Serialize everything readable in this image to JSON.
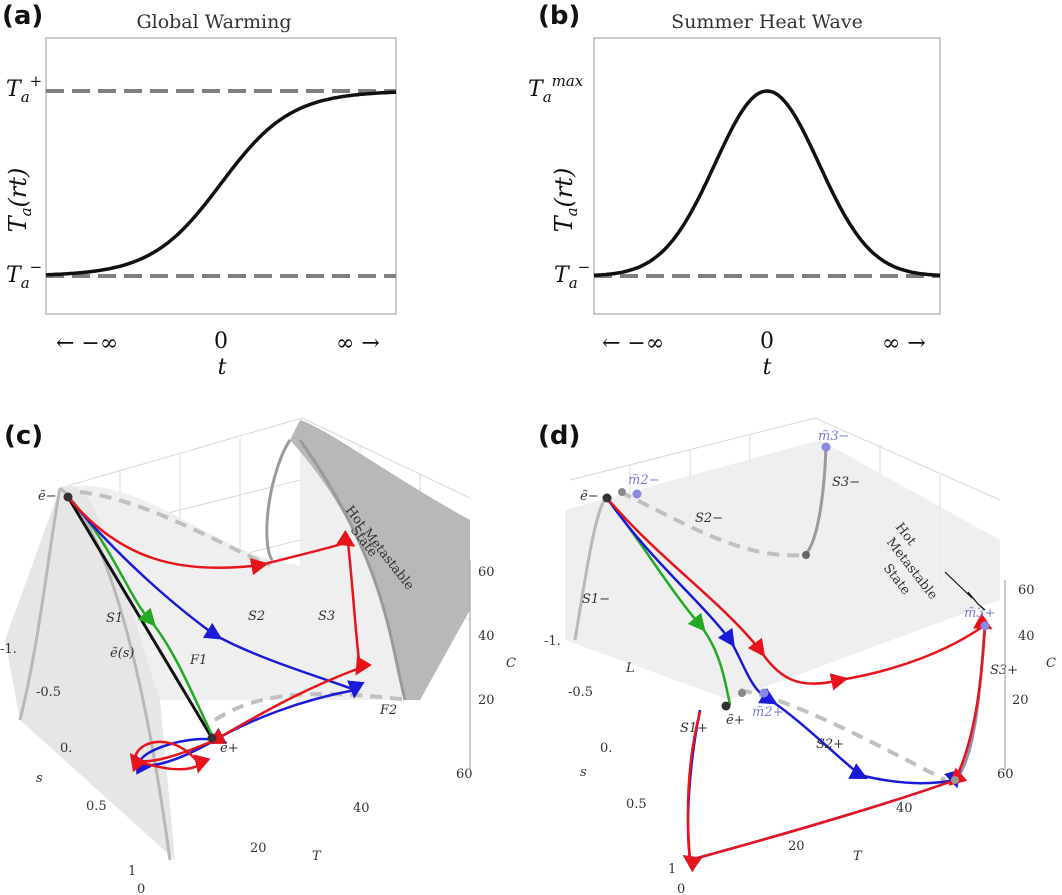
{
  "panels": {
    "a": {
      "label": "(a)",
      "title": "Global Warming",
      "ylabel": "Ta(rt)",
      "ytick_high": "Ta+",
      "ytick_low": "Ta−",
      "xticks": [
        "← −∞",
        "0",
        "∞ →"
      ],
      "xlabel": "t"
    },
    "b": {
      "label": "(b)",
      "title": "Summer Heat Wave",
      "ylabel": "Ta(rt)",
      "ytick_high": "Tamax",
      "ytick_low": "Ta−",
      "xticks": [
        "← −∞",
        "0",
        "∞ →"
      ],
      "xlabel": "t"
    },
    "c": {
      "label": "(c)",
      "axis_T": "T",
      "axis_s": "s",
      "axis_C": "C",
      "T_ticks": [
        "20",
        "40",
        "60"
      ],
      "s_ticks": [
        "-1.",
        "-0.5",
        "0.",
        "0.5",
        "1"
      ],
      "C_ticks": [
        "20",
        "40",
        "60"
      ],
      "corner_tick": "0",
      "annotations": {
        "e_minus": "ẽ−",
        "e_plus": "ẽ+",
        "S1": "S1",
        "S2": "S2",
        "S3": "S3",
        "F1": "F1",
        "F2": "F2",
        "es": "ẽ(s)",
        "hot1": "Hot Metastable",
        "hot2": "State"
      }
    },
    "d": {
      "label": "(d)",
      "axis_T": "T",
      "axis_s": "s",
      "axis_C": "C",
      "T_ticks": [
        "20",
        "40",
        "60"
      ],
      "s_ticks": [
        "-1.",
        "-0.5",
        "0.",
        "0.5",
        "1"
      ],
      "C_ticks": [
        "20",
        "40",
        "60"
      ],
      "corner_tick": "0",
      "annotations": {
        "e_minus": "ẽ−",
        "e_plus": "ẽ+",
        "m2m": "m̃2−",
        "m3m": "m̃3−",
        "m2p": "m̃2+",
        "m3p": "m̃3+",
        "S1m": "S1−",
        "S2m": "S2−",
        "S3m": "S3−",
        "S1p": "S1+",
        "S2p": "S2+",
        "S3p": "S3+",
        "L": "L",
        "hot1": "Hot",
        "hot2": "Metastable",
        "hot3": "State"
      }
    }
  },
  "chart_data": [
    {
      "type": "line",
      "panel": "a",
      "title": "Global Warming",
      "xlabel": "t",
      "ylabel": "Ta(rt)",
      "x_ticks": [
        "-inf",
        "0",
        "inf"
      ],
      "series": [
        {
          "name": "Ta(rt)",
          "shape": "sigmoid",
          "from": "Ta-",
          "to": "Ta+"
        },
        {
          "name": "Ta+ level",
          "style": "dashed",
          "value": "Ta+"
        },
        {
          "name": "Ta- level",
          "style": "dashed",
          "value": "Ta-"
        }
      ]
    },
    {
      "type": "line",
      "panel": "b",
      "title": "Summer Heat Wave",
      "xlabel": "t",
      "ylabel": "Ta(rt)",
      "x_ticks": [
        "-inf",
        "0",
        "inf"
      ],
      "series": [
        {
          "name": "Ta(rt)",
          "shape": "gaussian pulse",
          "baseline": "Ta-",
          "peak": "Tamax",
          "peak_at": 0
        },
        {
          "name": "Ta- level",
          "style": "dashed",
          "value": "Ta-"
        }
      ]
    },
    {
      "type": "line",
      "panel": "c",
      "projection": "3d",
      "axes": {
        "T": [
          0,
          60
        ],
        "s": [
          -1,
          1
        ],
        "C": [
          0,
          60
        ]
      },
      "series": [
        "red trajectory",
        "blue trajectory",
        "green trajectory",
        "black chord e(s)"
      ]
    },
    {
      "type": "line",
      "panel": "d",
      "projection": "3d",
      "axes": {
        "T": [
          0,
          60
        ],
        "s": [
          -1,
          1
        ],
        "C": [
          0,
          60
        ]
      },
      "series": [
        "red trajectory",
        "blue trajectory",
        "green trajectory"
      ]
    }
  ],
  "colors": {
    "red": "#e8141c",
    "blue": "#1a1ad8",
    "green": "#22aa22",
    "black": "#111111",
    "dash": "#808080",
    "surface": "#ececec",
    "point_blue": "#8a8ae0"
  }
}
